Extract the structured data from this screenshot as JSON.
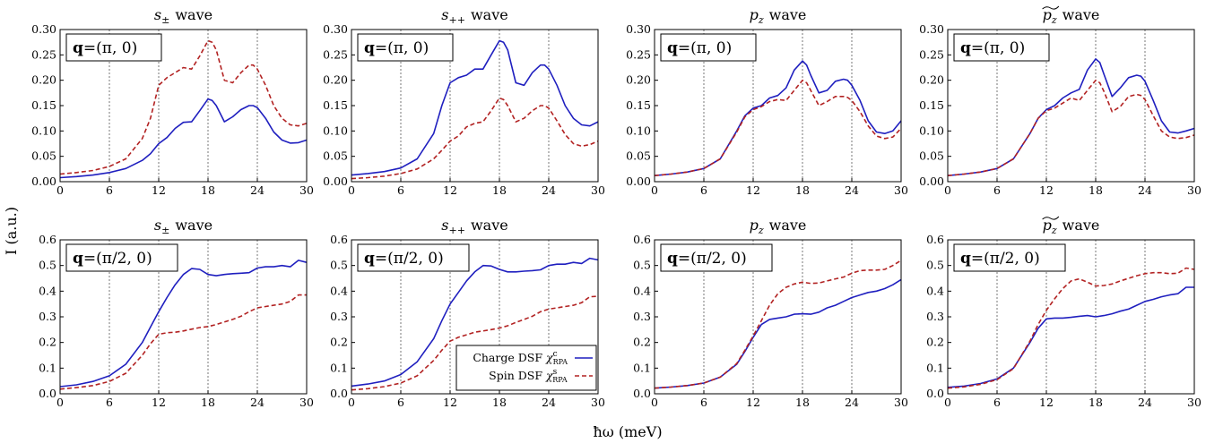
{
  "figure": {
    "ylabel": "I (a.u.)",
    "xlabel": "ħω (meV)",
    "legend": {
      "entries": [
        {
          "label": "Charge DSF",
          "symbol": "χ",
          "sup": "c",
          "sub": "RPA",
          "color": "#1f1fbf",
          "style": "solid"
        },
        {
          "label": "Spin DSF",
          "symbol": "χ",
          "sup": "s",
          "sub": "RPA",
          "color": "#b22222",
          "style": "dashed"
        }
      ]
    },
    "colors": {
      "charge": "#1f1fbf",
      "spin": "#b22222",
      "vline": "#777777"
    }
  },
  "chart_data": [
    {
      "type": "line",
      "title_base": "s",
      "title_sub": "±",
      "title_tilde": false,
      "title_suffix": "wave",
      "box_q": "q",
      "box_value": "(π, 0)",
      "xlim": [
        0,
        30
      ],
      "ylim": [
        0,
        0.3
      ],
      "xticks": [
        "0",
        "6",
        "12",
        "18",
        "24",
        "30"
      ],
      "yticks": [
        "0.00",
        "0.05",
        "0.10",
        "0.15",
        "0.20",
        "0.25",
        "0.30"
      ],
      "vlines": [
        6,
        12,
        18,
        24
      ],
      "x": [
        0,
        2,
        4,
        6,
        8,
        10,
        11,
        12,
        13,
        14,
        15,
        16,
        17,
        18,
        18.5,
        19,
        20,
        21,
        22,
        23,
        23.5,
        24,
        25,
        26,
        27,
        28,
        29,
        30
      ],
      "series": [
        {
          "name": "Charge DSF",
          "values": [
            0.008,
            0.01,
            0.013,
            0.018,
            0.026,
            0.042,
            0.055,
            0.075,
            0.087,
            0.105,
            0.117,
            0.118,
            0.14,
            0.163,
            0.16,
            0.15,
            0.118,
            0.128,
            0.142,
            0.15,
            0.15,
            0.146,
            0.125,
            0.098,
            0.082,
            0.076,
            0.077,
            0.082
          ]
        },
        {
          "name": "Spin DSF",
          "values": [
            0.015,
            0.018,
            0.022,
            0.03,
            0.045,
            0.085,
            0.125,
            0.19,
            0.205,
            0.215,
            0.225,
            0.222,
            0.248,
            0.278,
            0.275,
            0.26,
            0.2,
            0.195,
            0.215,
            0.23,
            0.23,
            0.222,
            0.19,
            0.15,
            0.125,
            0.112,
            0.11,
            0.115
          ]
        }
      ]
    },
    {
      "type": "line",
      "title_base": "s",
      "title_sub": "++",
      "title_tilde": false,
      "title_suffix": "wave",
      "box_q": "q",
      "box_value": "(π, 0)",
      "xlim": [
        0,
        30
      ],
      "ylim": [
        0,
        0.3
      ],
      "xticks": [
        "0",
        "6",
        "12",
        "18",
        "24",
        "30"
      ],
      "yticks": [
        "0.00",
        "0.05",
        "0.10",
        "0.15",
        "0.20",
        "0.25",
        "0.30"
      ],
      "vlines": [
        6,
        12,
        18,
        24
      ],
      "x": [
        0,
        2,
        4,
        6,
        8,
        10,
        11,
        12,
        13,
        14,
        15,
        16,
        17,
        18,
        18.5,
        19,
        20,
        21,
        22,
        23,
        23.5,
        24,
        25,
        26,
        27,
        28,
        29,
        30
      ],
      "series": [
        {
          "name": "Charge DSF",
          "values": [
            0.013,
            0.016,
            0.02,
            0.027,
            0.045,
            0.095,
            0.15,
            0.195,
            0.205,
            0.21,
            0.222,
            0.222,
            0.25,
            0.278,
            0.275,
            0.26,
            0.195,
            0.19,
            0.215,
            0.23,
            0.23,
            0.222,
            0.19,
            0.15,
            0.125,
            0.112,
            0.11,
            0.118
          ]
        },
        {
          "name": "Spin DSF",
          "values": [
            0.006,
            0.008,
            0.011,
            0.016,
            0.025,
            0.045,
            0.062,
            0.08,
            0.09,
            0.108,
            0.115,
            0.118,
            0.14,
            0.165,
            0.162,
            0.15,
            0.118,
            0.125,
            0.14,
            0.15,
            0.15,
            0.145,
            0.12,
            0.093,
            0.075,
            0.07,
            0.073,
            0.08
          ]
        }
      ]
    },
    {
      "type": "line",
      "title_base": "p",
      "title_sub": "z",
      "title_tilde": false,
      "title_suffix": "wave",
      "box_q": "q",
      "box_value": "(π, 0)",
      "xlim": [
        0,
        30
      ],
      "ylim": [
        0,
        0.3
      ],
      "xticks": [
        "0",
        "6",
        "12",
        "18",
        "24",
        "30"
      ],
      "yticks": [
        "0.00",
        "0.05",
        "0.10",
        "0.15",
        "0.20",
        "0.25",
        "0.30"
      ],
      "vlines": [
        6,
        12,
        18,
        24
      ],
      "x": [
        0,
        2,
        4,
        6,
        8,
        10,
        11,
        12,
        13,
        14,
        15,
        16,
        17,
        18,
        18.5,
        19,
        20,
        21,
        22,
        23,
        23.5,
        24,
        25,
        26,
        27,
        28,
        29,
        30
      ],
      "series": [
        {
          "name": "Charge DSF",
          "values": [
            0.012,
            0.015,
            0.019,
            0.026,
            0.045,
            0.1,
            0.13,
            0.145,
            0.15,
            0.165,
            0.17,
            0.185,
            0.22,
            0.238,
            0.23,
            0.21,
            0.175,
            0.18,
            0.198,
            0.202,
            0.2,
            0.19,
            0.16,
            0.12,
            0.098,
            0.095,
            0.1,
            0.12
          ]
        },
        {
          "name": "Spin DSF",
          "values": [
            0.012,
            0.015,
            0.019,
            0.026,
            0.045,
            0.098,
            0.128,
            0.142,
            0.148,
            0.158,
            0.162,
            0.16,
            0.18,
            0.2,
            0.195,
            0.18,
            0.15,
            0.158,
            0.168,
            0.168,
            0.166,
            0.16,
            0.138,
            0.11,
            0.09,
            0.085,
            0.088,
            0.105
          ]
        }
      ]
    },
    {
      "type": "line",
      "title_base": "p",
      "title_sub": "z",
      "title_tilde": true,
      "title_suffix": "wave",
      "box_q": "q",
      "box_value": "(π, 0)",
      "xlim": [
        0,
        30
      ],
      "ylim": [
        0,
        0.3
      ],
      "xticks": [
        "0",
        "6",
        "12",
        "18",
        "24",
        "30"
      ],
      "yticks": [
        "0.00",
        "0.05",
        "0.10",
        "0.15",
        "0.20",
        "0.25",
        "0.30"
      ],
      "vlines": [
        6,
        12,
        18,
        24
      ],
      "x": [
        0,
        2,
        4,
        6,
        8,
        10,
        11,
        12,
        13,
        14,
        15,
        16,
        17,
        18,
        18.5,
        19,
        20,
        21,
        22,
        23,
        23.5,
        24,
        25,
        26,
        27,
        28,
        29,
        30
      ],
      "series": [
        {
          "name": "Charge DSF",
          "values": [
            0.012,
            0.015,
            0.019,
            0.026,
            0.045,
            0.095,
            0.125,
            0.142,
            0.15,
            0.165,
            0.175,
            0.182,
            0.22,
            0.242,
            0.235,
            0.212,
            0.168,
            0.185,
            0.205,
            0.21,
            0.208,
            0.198,
            0.16,
            0.12,
            0.098,
            0.096,
            0.1,
            0.105
          ]
        },
        {
          "name": "Spin DSF",
          "values": [
            0.012,
            0.015,
            0.019,
            0.026,
            0.045,
            0.095,
            0.125,
            0.14,
            0.145,
            0.155,
            0.165,
            0.16,
            0.18,
            0.2,
            0.195,
            0.178,
            0.138,
            0.148,
            0.168,
            0.172,
            0.17,
            0.162,
            0.13,
            0.1,
            0.088,
            0.085,
            0.087,
            0.092
          ]
        }
      ]
    },
    {
      "type": "line",
      "title_base": "s",
      "title_sub": "±",
      "title_tilde": false,
      "title_suffix": "wave",
      "box_q": "q",
      "box_value": "(π/2, 0)",
      "xlim": [
        0,
        30
      ],
      "ylim": [
        0,
        0.6
      ],
      "xticks": [
        "0",
        "6",
        "12",
        "18",
        "24",
        "30"
      ],
      "yticks": [
        "0.0",
        "0.1",
        "0.2",
        "0.3",
        "0.4",
        "0.5",
        "0.6"
      ],
      "vlines": [
        6,
        12,
        18,
        24
      ],
      "x": [
        0,
        2,
        4,
        6,
        8,
        10,
        11,
        12,
        13,
        14,
        15,
        16,
        17,
        18,
        19,
        20,
        21,
        22,
        23,
        24,
        25,
        26,
        27,
        28,
        29,
        30
      ],
      "series": [
        {
          "name": "Charge DSF",
          "values": [
            0.028,
            0.035,
            0.048,
            0.07,
            0.115,
            0.2,
            0.26,
            0.32,
            0.375,
            0.425,
            0.465,
            0.488,
            0.485,
            0.465,
            0.46,
            0.465,
            0.468,
            0.47,
            0.472,
            0.49,
            0.495,
            0.495,
            0.5,
            0.495,
            0.52,
            0.512
          ]
        },
        {
          "name": "Spin DSF",
          "values": [
            0.018,
            0.024,
            0.032,
            0.048,
            0.08,
            0.15,
            0.195,
            0.232,
            0.238,
            0.24,
            0.245,
            0.252,
            0.258,
            0.262,
            0.27,
            0.28,
            0.29,
            0.302,
            0.32,
            0.335,
            0.34,
            0.345,
            0.35,
            0.36,
            0.385,
            0.385
          ]
        }
      ]
    },
    {
      "type": "line",
      "title_base": "s",
      "title_sub": "++",
      "title_tilde": false,
      "title_suffix": "wave",
      "box_q": "q",
      "box_value": "(π/2, 0)",
      "xlim": [
        0,
        30
      ],
      "ylim": [
        0,
        0.6
      ],
      "xticks": [
        "0",
        "6",
        "12",
        "18",
        "24",
        "30"
      ],
      "yticks": [
        "0.0",
        "0.1",
        "0.2",
        "0.3",
        "0.4",
        "0.5",
        "0.6"
      ],
      "vlines": [
        6,
        12,
        18,
        24
      ],
      "x": [
        0,
        2,
        4,
        6,
        8,
        10,
        11,
        12,
        13,
        14,
        15,
        16,
        17,
        18,
        19,
        20,
        21,
        22,
        23,
        24,
        25,
        26,
        27,
        28,
        29,
        30
      ],
      "series": [
        {
          "name": "Charge DSF",
          "values": [
            0.03,
            0.038,
            0.05,
            0.075,
            0.125,
            0.215,
            0.285,
            0.35,
            0.395,
            0.44,
            0.475,
            0.5,
            0.498,
            0.485,
            0.475,
            0.475,
            0.478,
            0.48,
            0.483,
            0.5,
            0.505,
            0.505,
            0.512,
            0.508,
            0.528,
            0.522
          ]
        },
        {
          "name": "Spin DSF",
          "values": [
            0.015,
            0.02,
            0.028,
            0.042,
            0.07,
            0.13,
            0.17,
            0.205,
            0.22,
            0.23,
            0.24,
            0.245,
            0.25,
            0.256,
            0.265,
            0.278,
            0.29,
            0.302,
            0.32,
            0.33,
            0.335,
            0.34,
            0.345,
            0.355,
            0.378,
            0.38
          ]
        }
      ]
    },
    {
      "type": "line",
      "title_base": "p",
      "title_sub": "z",
      "title_tilde": false,
      "title_suffix": "wave",
      "box_q": "q",
      "box_value": "(π/2, 0)",
      "xlim": [
        0,
        30
      ],
      "ylim": [
        0,
        0.6
      ],
      "xticks": [
        "0",
        "6",
        "12",
        "18",
        "24",
        "30"
      ],
      "yticks": [
        "0.0",
        "0.1",
        "0.2",
        "0.3",
        "0.4",
        "0.5",
        "0.6"
      ],
      "vlines": [
        6,
        12,
        18,
        24
      ],
      "x": [
        0,
        2,
        4,
        6,
        8,
        10,
        11,
        12,
        13,
        14,
        15,
        16,
        17,
        18,
        19,
        20,
        21,
        22,
        23,
        24,
        25,
        26,
        27,
        28,
        29,
        30
      ],
      "series": [
        {
          "name": "Charge DSF",
          "values": [
            0.022,
            0.026,
            0.032,
            0.042,
            0.065,
            0.115,
            0.165,
            0.22,
            0.27,
            0.29,
            0.295,
            0.3,
            0.31,
            0.312,
            0.31,
            0.318,
            0.335,
            0.345,
            0.36,
            0.375,
            0.385,
            0.395,
            0.4,
            0.41,
            0.425,
            0.445
          ]
        },
        {
          "name": "Spin DSF",
          "values": [
            0.022,
            0.026,
            0.032,
            0.042,
            0.065,
            0.118,
            0.17,
            0.225,
            0.285,
            0.345,
            0.39,
            0.415,
            0.428,
            0.435,
            0.43,
            0.432,
            0.44,
            0.448,
            0.455,
            0.47,
            0.48,
            0.482,
            0.482,
            0.485,
            0.5,
            0.52
          ]
        }
      ]
    },
    {
      "type": "line",
      "title_base": "p",
      "title_sub": "z",
      "title_tilde": true,
      "title_suffix": "wave",
      "box_q": "q",
      "box_value": "(π/2, 0)",
      "xlim": [
        0,
        30
      ],
      "ylim": [
        0,
        0.6
      ],
      "xticks": [
        "0",
        "6",
        "12",
        "18",
        "24",
        "30"
      ],
      "yticks": [
        "0.0",
        "0.1",
        "0.2",
        "0.3",
        "0.4",
        "0.5",
        "0.6"
      ],
      "vlines": [
        6,
        12,
        18,
        24
      ],
      "x": [
        0,
        2,
        4,
        6,
        8,
        10,
        11,
        12,
        13,
        14,
        15,
        16,
        17,
        18,
        19,
        20,
        21,
        22,
        23,
        24,
        25,
        26,
        27,
        28,
        29,
        30
      ],
      "series": [
        {
          "name": "Charge DSF",
          "values": [
            0.025,
            0.03,
            0.04,
            0.058,
            0.1,
            0.2,
            0.255,
            0.292,
            0.295,
            0.295,
            0.298,
            0.302,
            0.305,
            0.3,
            0.305,
            0.312,
            0.322,
            0.33,
            0.345,
            0.36,
            0.368,
            0.378,
            0.385,
            0.39,
            0.415,
            0.415
          ]
        },
        {
          "name": "Spin DSF",
          "values": [
            0.022,
            0.027,
            0.037,
            0.055,
            0.098,
            0.205,
            0.27,
            0.325,
            0.37,
            0.41,
            0.44,
            0.448,
            0.435,
            0.42,
            0.422,
            0.428,
            0.44,
            0.45,
            0.46,
            0.468,
            0.472,
            0.472,
            0.468,
            0.47,
            0.49,
            0.485
          ]
        }
      ]
    }
  ]
}
